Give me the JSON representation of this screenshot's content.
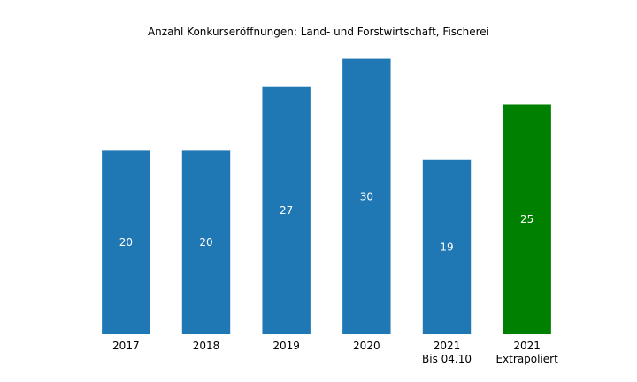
{
  "chart_data": {
    "type": "bar",
    "title": "Anzahl Konkurseröffnungen: Land- und Forstwirtschaft, Fischerei",
    "categories": [
      [
        "2017"
      ],
      [
        "2018"
      ],
      [
        "2019"
      ],
      [
        "2020"
      ],
      [
        "2021",
        "Bis 04.10"
      ],
      [
        "2021",
        "Extrapoliert"
      ]
    ],
    "values": [
      20,
      20,
      27,
      30,
      19,
      25
    ],
    "bar_colors": [
      "#1f77b4",
      "#1f77b4",
      "#1f77b4",
      "#1f77b4",
      "#1f77b4",
      "#008000"
    ],
    "label_color": "#ffffff",
    "xlabel": "",
    "ylabel": "",
    "ylim": [
      0,
      31.5
    ],
    "grid": false,
    "legend": "none"
  }
}
